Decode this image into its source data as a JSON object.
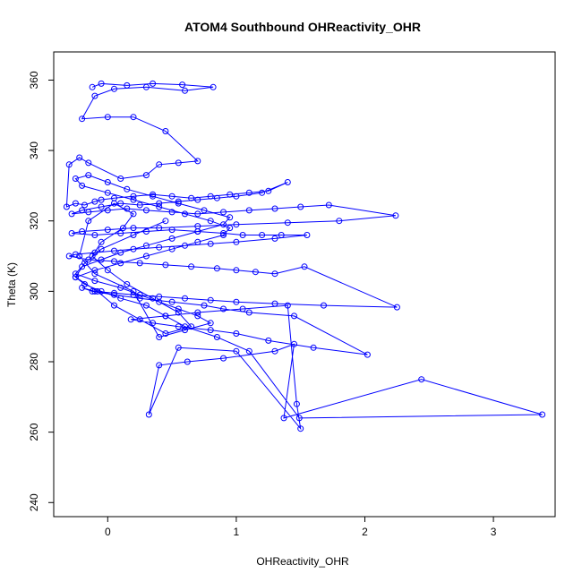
{
  "chart_data": {
    "type": "line",
    "title": "ATOM4 Southbound OHReactivity_OHR",
    "xlabel": "OHReactivity_OHR",
    "ylabel": "Theta (K)",
    "xlim": [
      -0.42,
      3.48
    ],
    "ylim": [
      236,
      368
    ],
    "xticks": [
      0,
      1,
      2,
      3
    ],
    "yticks": [
      240,
      260,
      280,
      300,
      320,
      340,
      360
    ],
    "grid": false,
    "colors": {
      "series": "#0000ff"
    },
    "series": [
      {
        "marker": "open-circle",
        "x": [
          -0.12,
          -0.05,
          0.15,
          0.35,
          0.58,
          0.82,
          0.6,
          0.3,
          0.05,
          -0.1,
          -0.2,
          0.0,
          0.2,
          0.45,
          0.7,
          0.55,
          0.4,
          0.3,
          0.1,
          -0.15,
          -0.22,
          -0.3,
          -0.32,
          -0.25,
          -0.18,
          -0.1,
          -0.05,
          0.05,
          0.2,
          0.35,
          0.5,
          0.65,
          0.8,
          0.95,
          1.1,
          1.25,
          1.4,
          1.2,
          1.0,
          0.85,
          0.7,
          0.55,
          0.4,
          0.25,
          0.1,
          -0.05,
          -0.2,
          -0.28,
          -0.15,
          0.0,
          0.15,
          0.3,
          0.5,
          0.7,
          0.9,
          1.1,
          1.3,
          1.5,
          1.72,
          2.24,
          1.8,
          1.4,
          1.0,
          0.7,
          0.4,
          0.2,
          0.0,
          -0.2,
          -0.28,
          -0.1,
          0.1,
          0.3,
          0.5,
          0.7,
          0.9,
          1.05,
          1.2,
          1.35,
          1.55,
          1.3,
          1.0,
          0.8,
          0.6,
          0.4,
          0.2,
          0.05,
          -0.1,
          -0.25,
          -0.3,
          -0.15,
          0.05,
          0.25,
          0.45,
          0.65,
          0.85,
          1.0,
          1.15,
          1.3,
          1.53,
          2.25,
          1.68,
          1.3,
          1.0,
          0.8,
          0.6,
          0.4,
          0.2,
          0.05,
          -0.1,
          -0.2,
          -0.12,
          0.05,
          0.25,
          0.5,
          0.75,
          0.9,
          1.1,
          1.45,
          2.02,
          1.6,
          1.25,
          1.0,
          0.8,
          0.55,
          0.35,
          0.18,
          0.45,
          0.7,
          1.05,
          1.4,
          1.47,
          1.5,
          1.0,
          0.55,
          0.32,
          0.4,
          0.62,
          0.9,
          1.3,
          1.45,
          1.37,
          2.44,
          3.38,
          1.49,
          1.1,
          0.85,
          0.6,
          0.45,
          0.3,
          0.1,
          -0.05,
          -0.18,
          -0.25,
          -0.1,
          0.1,
          0.3,
          0.5,
          0.7,
          0.9,
          0.95,
          0.8,
          0.6,
          0.4,
          0.2,
          0.0,
          -0.2,
          -0.25,
          -0.15,
          0.0,
          0.15,
          0.35,
          0.55,
          0.75,
          0.95,
          0.9,
          0.7,
          0.5,
          0.3,
          0.1,
          -0.05,
          -0.2,
          -0.25,
          -0.1,
          0.1,
          0.25,
          0.4,
          0.55,
          0.7,
          0.8,
          0.6,
          0.4,
          0.2,
          -0.1,
          -0.22,
          -0.15,
          0.05,
          0.2,
          0.12,
          -0.05,
          -0.12,
          0.0,
          0.15,
          0.35,
          0.55,
          0.65,
          0.45,
          0.25,
          0.05,
          -0.08,
          -0.25,
          -0.18,
          -0.05,
          0.2,
          0.45
        ],
        "y": [
          358,
          359,
          358.5,
          359,
          358.7,
          358,
          357,
          358,
          357.5,
          355.5,
          349,
          349.5,
          349.5,
          345.5,
          337,
          336.5,
          336,
          333,
          332,
          336.5,
          338,
          336,
          324,
          325,
          324.5,
          325.5,
          326,
          326.5,
          327,
          327.5,
          327,
          326.5,
          327,
          327.5,
          328,
          328.5,
          331,
          328,
          327,
          326.5,
          326,
          325.5,
          325,
          324.5,
          325,
          324,
          323,
          322,
          322.5,
          323,
          323.5,
          323,
          322.5,
          322,
          322.5,
          323,
          323.5,
          324,
          324.5,
          321.5,
          320,
          319.5,
          319,
          318.5,
          318,
          318,
          317.5,
          317,
          316.5,
          316,
          316.5,
          317,
          317.5,
          317,
          316.5,
          316,
          316,
          316,
          316,
          315,
          314,
          313.5,
          313,
          312.5,
          312,
          311.5,
          311,
          310.5,
          310,
          309,
          308.5,
          308,
          307.5,
          307,
          306.5,
          306,
          305.5,
          305,
          307,
          295.5,
          296,
          296.5,
          297,
          297.5,
          298,
          298.5,
          299,
          299.5,
          300,
          301,
          300,
          299,
          298,
          297,
          296,
          295,
          294,
          293,
          282,
          284,
          286,
          288,
          289,
          290,
          291,
          292,
          293,
          294,
          295,
          296,
          268,
          261,
          283,
          284,
          265,
          279,
          280,
          281,
          283,
          285,
          264,
          275,
          265,
          264,
          283,
          287,
          290,
          293,
          296,
          298,
          300,
          302,
          304,
          306,
          308,
          310,
          312,
          314,
          316,
          318,
          320,
          322,
          324,
          326,
          328,
          330,
          332,
          333,
          331,
          329,
          327,
          325,
          323,
          321,
          319,
          317,
          315,
          313,
          311,
          309,
          307,
          305,
          303,
          301,
          299,
          297,
          295,
          293,
          291,
          289,
          287,
          300,
          305,
          310,
          320,
          325,
          322,
          318,
          314,
          310,
          306,
          302,
          298,
          294,
          290,
          288,
          292,
          296,
          300,
          304,
          308,
          312,
          316,
          320
        ]
      }
    ]
  }
}
